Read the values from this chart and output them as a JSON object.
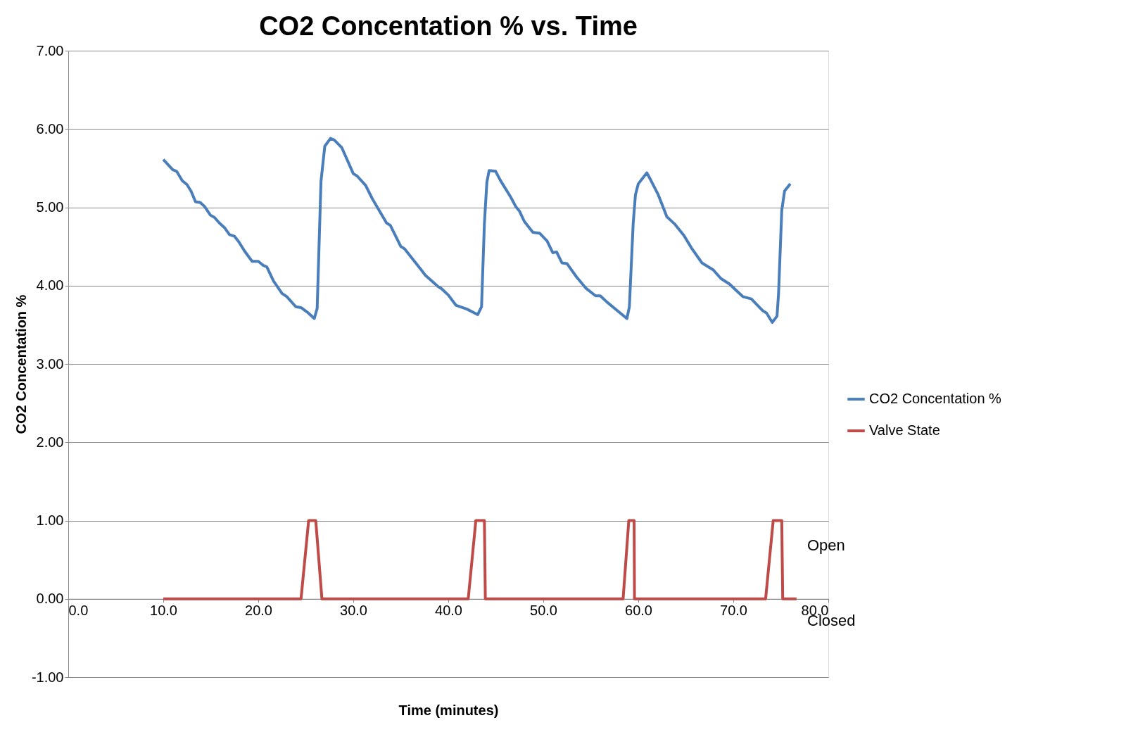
{
  "chart_data": {
    "type": "line",
    "title": "CO2 Concentation % vs. Time",
    "xlabel": "Time (minutes)",
    "ylabel": "CO2 Concentation %",
    "xlim": [
      0,
      80
    ],
    "xticks": [
      {
        "value": 0,
        "label": "0.0"
      },
      {
        "value": 10,
        "label": "10.0"
      },
      {
        "value": 20,
        "label": "20.0"
      },
      {
        "value": 30,
        "label": "30.0"
      },
      {
        "value": 40,
        "label": "40.0"
      },
      {
        "value": 50,
        "label": "50.0"
      },
      {
        "value": 60,
        "label": "60.0"
      },
      {
        "value": 70,
        "label": "70.0"
      },
      {
        "value": 80,
        "label": "80.0"
      }
    ],
    "ylim": [
      -1,
      7
    ],
    "yticks": [
      {
        "value": -1,
        "label": "-1.00"
      },
      {
        "value": 0,
        "label": "0.00"
      },
      {
        "value": 1,
        "label": "1.00"
      },
      {
        "value": 2,
        "label": "2.00"
      },
      {
        "value": 3,
        "label": "3.00"
      },
      {
        "value": 4,
        "label": "4.00"
      },
      {
        "value": 5,
        "label": "5.00"
      },
      {
        "value": 6,
        "label": "6.00"
      },
      {
        "value": 7,
        "label": "7.00"
      }
    ],
    "grid": "y",
    "legend": "right",
    "marker": "none",
    "line_style": "solid",
    "series": [
      {
        "name": "CO2 Concentation %",
        "color": "#4a7ebb",
        "x": [
          10.0,
          11.0,
          11.4,
          12.0,
          12.5,
          12.95,
          13.4,
          13.9,
          14.35,
          14.96,
          15.4,
          15.9,
          16.45,
          16.97,
          17.5,
          17.95,
          18.56,
          19.35,
          20.0,
          20.5,
          20.9,
          21.6,
          22.5,
          23.0,
          23.95,
          24.5,
          25.27,
          25.9,
          26.2,
          26.4,
          26.6,
          27.0,
          27.6,
          28.0,
          28.8,
          30.0,
          30.4,
          31.3,
          32.0,
          33.5,
          33.9,
          35.0,
          35.4,
          37.1,
          37.6,
          38.9,
          39.3,
          40.0,
          40.8,
          41.96,
          43.1,
          43.5,
          43.8,
          44.06,
          44.3,
          44.98,
          45.5,
          46.57,
          47.1,
          47.5,
          48.0,
          48.9,
          49.6,
          50.4,
          51.0,
          51.4,
          51.96,
          52.5,
          53.5,
          54.46,
          55.5,
          56.0,
          56.7,
          58.1,
          58.8,
          59.06,
          59.46,
          59.7,
          60.0,
          60.9,
          61.3,
          62.1,
          63.0,
          63.8,
          64.8,
          65.6,
          66.7,
          67.9,
          68.7,
          69.6,
          70.2,
          71.0,
          71.9,
          72.7,
          73.1,
          73.5,
          74.1,
          74.6,
          74.76,
          75.1,
          75.4,
          76.0
        ],
        "values": [
          5.61,
          5.48,
          5.46,
          5.34,
          5.29,
          5.2,
          5.07,
          5.06,
          5.01,
          4.9,
          4.87,
          4.8,
          4.74,
          4.65,
          4.63,
          4.56,
          4.44,
          4.31,
          4.31,
          4.26,
          4.24,
          4.06,
          3.9,
          3.86,
          3.73,
          3.72,
          3.65,
          3.58,
          3.71,
          4.52,
          5.33,
          5.78,
          5.88,
          5.86,
          5.76,
          5.43,
          5.4,
          5.28,
          5.11,
          4.8,
          4.77,
          4.5,
          4.47,
          4.21,
          4.13,
          3.99,
          3.96,
          3.88,
          3.75,
          3.7,
          3.63,
          3.73,
          4.79,
          5.32,
          5.47,
          5.46,
          5.34,
          5.13,
          5.01,
          4.95,
          4.82,
          4.68,
          4.67,
          4.57,
          4.42,
          4.43,
          4.29,
          4.28,
          4.11,
          3.97,
          3.87,
          3.87,
          3.79,
          3.65,
          3.58,
          3.73,
          4.79,
          5.16,
          5.3,
          5.44,
          5.35,
          5.16,
          4.88,
          4.79,
          4.64,
          4.48,
          4.29,
          4.2,
          4.09,
          4.02,
          3.95,
          3.86,
          3.83,
          3.73,
          3.68,
          3.65,
          3.53,
          3.61,
          3.89,
          4.96,
          5.21,
          5.3
        ]
      },
      {
        "name": "Valve State",
        "color": "#be4b48",
        "x": [
          10.0,
          24.5,
          25.3,
          26.05,
          26.7,
          42.1,
          42.9,
          43.8,
          43.9,
          58.4,
          59.0,
          59.56,
          59.6,
          73.4,
          74.2,
          75.1,
          75.2,
          76.65
        ],
        "values": [
          0,
          0,
          1,
          1,
          0,
          0,
          1,
          1,
          0,
          0,
          1,
          1,
          0,
          0,
          1,
          1,
          0,
          0
        ]
      }
    ],
    "annotations": [
      "Open",
      "Closed"
    ]
  }
}
